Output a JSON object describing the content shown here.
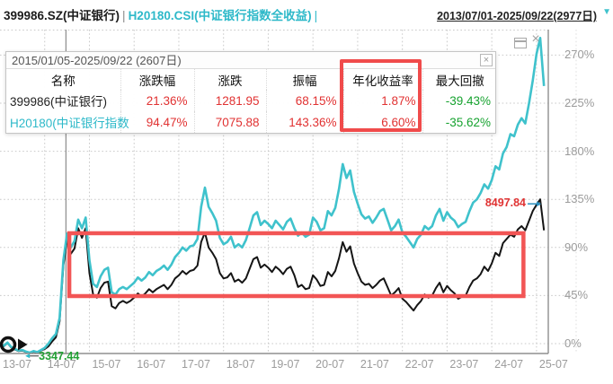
{
  "header": {
    "symbol_left": "399986.SZ(中证银行)",
    "separator": "|",
    "symbol_right": "H20180.CSI(中证银行指数全收益)",
    "trailing_separator": "|",
    "period_selector": "2013/07/01-2025/09/22(2977日)",
    "dropdown_icon": "▼"
  },
  "stats_panel": {
    "title": "2015/01/05-2025/09/22 (2607日)",
    "close_label": "×",
    "columns": [
      "名称",
      "涨跌幅",
      "涨跌",
      "振幅",
      "年化收益率",
      "最大回撤"
    ],
    "highlighted_column": "年化收益率",
    "rows": [
      {
        "name": "399986(中证银行)",
        "cells": [
          "21.36%",
          "1281.95",
          "68.15%",
          "1.87%",
          "-39.43%"
        ]
      },
      {
        "name": "H20180(中证银行指数",
        "cells": [
          "94.47%",
          "7075.88",
          "143.36%",
          "6.60%",
          "-35.62%"
        ]
      }
    ]
  },
  "colors": {
    "accent_cyan": "#3fc2cc",
    "line_black": "#151515",
    "highlight_red": "#f25555",
    "value_red": "#e13232",
    "value_green": "#16a22f",
    "grid": "#c9c9c9",
    "axis_border": "#8f8f8f"
  },
  "chart_data": {
    "type": "line",
    "title": "",
    "x_unit": "months since 2013-07",
    "x_tick_labels": [
      "13-07",
      "14-07",
      "15-07",
      "16-07",
      "17-07",
      "18-07",
      "19-07",
      "20-07",
      "21-07",
      "22-07",
      "23-07",
      "24-07",
      "25-07"
    ],
    "y_tick_labels": [
      "0%",
      "45%",
      "90%",
      "135%",
      "180%",
      "225%",
      "270%"
    ],
    "y_ticks_values": [
      0,
      45,
      90,
      135,
      180,
      225,
      270
    ],
    "ylim": [
      -20,
      293
    ],
    "grid": true,
    "legend_position": "none",
    "series": [
      {
        "name": "399986.SZ(中证银行)",
        "color": "#151515",
        "values": [
          0,
          -2.5,
          0.5,
          -3.5,
          -5.5,
          -7,
          -6.5,
          -8,
          -9,
          -7.5,
          -8.5,
          -6.5,
          -5,
          -2.5,
          2,
          6,
          21,
          73,
          97,
          84,
          89,
          108,
          99,
          108,
          66,
          46,
          43,
          52,
          57,
          58,
          35,
          33,
          38,
          40,
          38,
          40,
          43,
          47,
          44,
          47,
          51,
          48,
          51,
          53,
          55,
          51,
          55,
          61,
          64,
          68,
          65,
          68,
          69,
          73,
          95,
          104,
          90,
          85,
          79,
          66,
          61,
          62,
          66,
          58,
          60,
          57,
          61,
          70,
          79,
          81,
          71,
          74,
          71,
          67,
          72,
          69,
          65,
          70,
          72,
          64,
          53,
          55,
          51,
          52,
          64,
          60,
          54,
          55,
          67,
          63,
          68,
          80,
          95,
          86,
          91,
          75,
          66,
          58,
          55,
          56,
          52,
          55,
          59,
          61,
          53,
          45,
          48,
          52,
          42,
          39,
          35,
          31,
          36,
          40,
          46,
          43,
          45,
          52,
          57,
          48,
          54,
          50,
          47,
          42,
          44,
          45,
          53,
          59,
          61,
          65,
          72,
          68,
          75,
          85,
          82,
          94,
          98,
          102,
          100,
          107,
          110,
          106,
          115,
          124,
          130,
          135,
          106
        ]
      },
      {
        "name": "H20180.CSI(中证银行指数全收益)",
        "color": "#3fc2cc",
        "values": [
          0,
          -2,
          1,
          -3,
          -5,
          -6.5,
          -6,
          -7.5,
          -8.5,
          -7,
          -8,
          -6,
          -4,
          0,
          5,
          9,
          24,
          78,
          103,
          90,
          96,
          116,
          108,
          118,
          78,
          56,
          53,
          63,
          69,
          71,
          48,
          46,
          51,
          53,
          51,
          54,
          57,
          62,
          59,
          62,
          67,
          64,
          68,
          70,
          73,
          69,
          74,
          81,
          85,
          90,
          87,
          91,
          92,
          98,
          128,
          146,
          128,
          122,
          115,
          99,
          93,
          95,
          100,
          90,
          93,
          90,
          97,
          108,
          120,
          123,
          111,
          115,
          112,
          108,
          115,
          111,
          107,
          114,
          117,
          108,
          101,
          104,
          100,
          102,
          118,
          114,
          106,
          108,
          124,
          120,
          127,
          145,
          168,
          155,
          162,
          142,
          131,
          121,
          117,
          119,
          113,
          118,
          124,
          126,
          116,
          106,
          110,
          116,
          104,
          100,
          95,
          90,
          98,
          102,
          110,
          107,
          110,
          120,
          126,
          115,
          123,
          118,
          115,
          109,
          112,
          114,
          124,
          132,
          135,
          141,
          149,
          145,
          153,
          166,
          163,
          178,
          184,
          196,
          194,
          205,
          211,
          206,
          225,
          246,
          271,
          286,
          241
        ]
      }
    ],
    "annotations": {
      "min_label": {
        "text": "3347.44",
        "color": "#23a035",
        "series": 0,
        "month": 8,
        "value": -9
      },
      "max_label": {
        "text": "8497.84",
        "color": "#e03333",
        "series": 0,
        "month": 145,
        "value": 135
      },
      "period_start_line": {
        "month": 17.7
      },
      "highlight_rect": {
        "month_from": 18.6,
        "month_to": 140.5,
        "value_from": 44.5,
        "value_to": 103.3,
        "color": "#f25555"
      }
    }
  }
}
